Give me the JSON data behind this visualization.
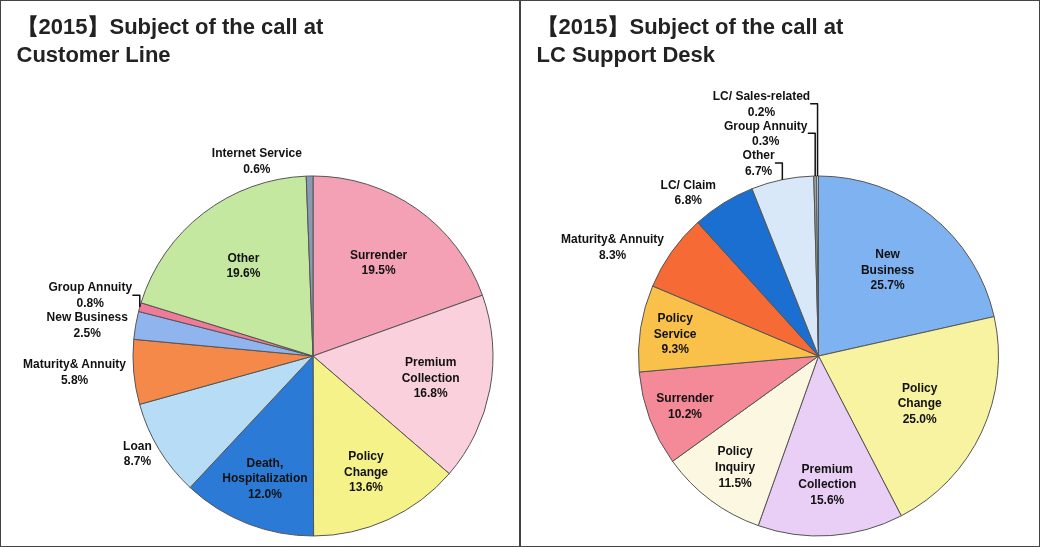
{
  "chart_data": [
    {
      "type": "pie",
      "title": "【2015】Subject of the call at Customer Line",
      "categories": [
        "Surrender",
        "Premium Collection",
        "Policy Change",
        "Death, Hospitalization",
        "Loan",
        "Maturity& Annuity",
        "New Business",
        "Group Annuity",
        "Other",
        "Internet Service"
      ],
      "values": [
        19.5,
        16.8,
        13.6,
        12.0,
        8.7,
        5.8,
        2.5,
        0.8,
        19.6,
        0.6
      ],
      "value_labels": [
        "19.5%",
        "16.8%",
        "13.6%",
        "12.0%",
        "8.7%",
        "5.8%",
        "2.5%",
        "0.8%",
        "19.6%",
        "0.6%"
      ],
      "colors": [
        "#f4a0b5",
        "#f9d0dc",
        "#f5f28a",
        "#2b7bd6",
        "#b7dcf5",
        "#f5894a",
        "#8fb4ee",
        "#f07a9a",
        "#c5e8a0",
        "#8a9ab5"
      ],
      "legend": false
    },
    {
      "type": "pie",
      "title": "【2015】Subject of the call at LC Support Desk",
      "categories": [
        "New Business",
        "Policy Change",
        "Premium Collection",
        "Policy Inquiry",
        "Surrender",
        "Policy Service",
        "Maturity& Annuity",
        "LC/ Claim",
        "Other",
        "Group Annuity",
        "LC/ Sales-related"
      ],
      "values": [
        25.7,
        25.0,
        15.6,
        11.5,
        10.2,
        9.3,
        8.3,
        6.8,
        6.7,
        0.3,
        0.2
      ],
      "value_labels": [
        "25.7%",
        "25.0%",
        "15.6%",
        "11.5%",
        "10.2%",
        "9.3%",
        "8.3%",
        "6.8%",
        "6.7%",
        "0.3%",
        "0.2%"
      ],
      "colors": [
        "#7fb2f0",
        "#f7f3a0",
        "#e9cef5",
        "#fbf7e0",
        "#f48a98",
        "#f9c04a",
        "#f56a35",
        "#1a6fd0",
        "#d8e8f8",
        "#a0a0a0",
        "#c0d8f0"
      ],
      "legend": false
    }
  ]
}
